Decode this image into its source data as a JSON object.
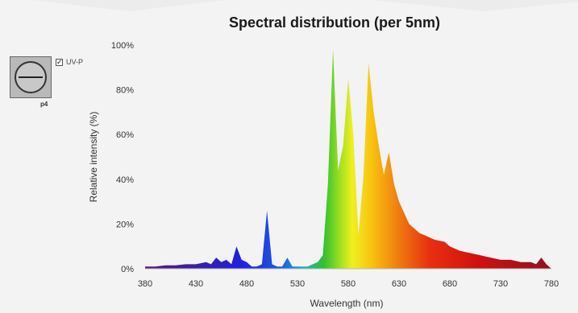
{
  "widget": {
    "icon": "disc-icon",
    "label": "p4",
    "checkbox_mark": "✓",
    "checkbox_label": "UV-P"
  },
  "chart_data": {
    "type": "area",
    "title": "Spectral distribution (per 5nm)",
    "xlabel": "Wavelength (nm)",
    "ylabel": "Relative intensity (%)",
    "xlim": [
      380,
      780
    ],
    "ylim": [
      0,
      100
    ],
    "x_ticks": [
      "380",
      "430",
      "480",
      "530",
      "580",
      "630",
      "680",
      "730",
      "780"
    ],
    "y_ticks": [
      "0%",
      "20%",
      "40%",
      "60%",
      "80%",
      "100%"
    ],
    "fill": "spectral gradient (violet to red)",
    "x": [
      380,
      390,
      400,
      410,
      420,
      430,
      440,
      445,
      450,
      455,
      460,
      465,
      470,
      475,
      480,
      485,
      490,
      495,
      500,
      505,
      510,
      515,
      520,
      525,
      530,
      535,
      540,
      545,
      550,
      555,
      560,
      565,
      570,
      575,
      580,
      585,
      590,
      595,
      600,
      605,
      610,
      615,
      620,
      625,
      630,
      635,
      640,
      645,
      650,
      655,
      660,
      665,
      670,
      675,
      680,
      690,
      700,
      710,
      720,
      730,
      740,
      750,
      760,
      765,
      770,
      775,
      780
    ],
    "values": [
      1,
      1,
      1.5,
      1.5,
      2,
      2,
      3,
      2,
      5,
      3,
      4,
      2,
      10,
      4,
      3,
      1,
      1,
      2,
      26,
      2,
      1,
      1,
      5,
      1,
      1,
      1,
      1,
      2,
      3,
      6,
      38,
      98,
      44,
      55,
      85,
      60,
      15,
      42,
      92,
      70,
      55,
      42,
      52,
      38,
      30,
      25,
      20,
      18,
      16,
      15,
      14,
      13,
      12.5,
      12,
      10,
      8,
      7,
      6,
      5,
      4,
      4,
      3,
      3,
      2,
      5,
      2,
      0
    ]
  }
}
